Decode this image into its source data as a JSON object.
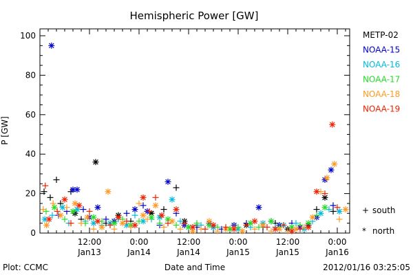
{
  "chart_data": {
    "type": "scatter",
    "title": "Hemispheric Power [GW]",
    "ylabel": "P [GW]",
    "xlabel": "Date and Time",
    "ylim": [
      0,
      105
    ],
    "xlim": [
      0,
      72
    ],
    "yticks": [
      0,
      20,
      40,
      60,
      80,
      100
    ],
    "xticks": [
      {
        "x": 12,
        "top": "12:00",
        "bottom": "Jan13"
      },
      {
        "x": 24,
        "top": "0:00",
        "bottom": "Jan14"
      },
      {
        "x": 36,
        "top": "12:00",
        "bottom": "Jan14"
      },
      {
        "x": 48,
        "top": "0:00",
        "bottom": "Jan15"
      },
      {
        "x": 60,
        "top": "12:00",
        "bottom": "Jan15"
      },
      {
        "x": 72,
        "top": "0:00",
        "bottom": "Jan16"
      }
    ],
    "legend_position": "right",
    "markers": {
      "south": "+",
      "north": "*"
    },
    "marker_legend": [
      {
        "symbol": "+",
        "label": "south"
      },
      {
        "symbol": "*",
        "label": "north"
      }
    ],
    "series": [
      {
        "name": "METP-02",
        "color": "#000000",
        "points": [
          [
            1.0,
            21,
            "s"
          ],
          [
            2.5,
            18,
            "s"
          ],
          [
            4.0,
            27,
            "s"
          ],
          [
            5.0,
            15,
            "s"
          ],
          [
            7.5,
            21,
            "s"
          ],
          [
            8.5,
            10,
            "n"
          ],
          [
            10,
            7,
            "s"
          ],
          [
            13.5,
            36,
            "n"
          ],
          [
            16,
            5,
            "s"
          ],
          [
            19,
            9,
            "n"
          ],
          [
            22,
            6,
            "s"
          ],
          [
            27,
            10,
            "n"
          ],
          [
            30,
            12,
            "s"
          ],
          [
            33,
            23,
            "s"
          ],
          [
            35,
            6,
            "n"
          ],
          [
            38,
            4,
            "s"
          ],
          [
            42,
            3,
            "n"
          ],
          [
            46,
            2,
            "s"
          ],
          [
            50,
            4,
            "n"
          ],
          [
            54,
            3,
            "s"
          ],
          [
            57,
            5,
            "s"
          ],
          [
            60,
            2,
            "n"
          ],
          [
            63,
            3,
            "s"
          ],
          [
            65,
            4,
            "n"
          ],
          [
            67,
            12,
            "s"
          ],
          [
            69,
            18,
            "n"
          ],
          [
            71,
            11,
            "s"
          ]
        ]
      },
      {
        "name": "NOAA-15",
        "color": "#0000cc",
        "points": [
          [
            2.8,
            95,
            "n"
          ],
          [
            4.5,
            9,
            "s"
          ],
          [
            6.5,
            11,
            "s"
          ],
          [
            8.0,
            22,
            "n"
          ],
          [
            9.0,
            22,
            "n"
          ],
          [
            10.5,
            12,
            "s"
          ],
          [
            12,
            8,
            "n"
          ],
          [
            14,
            13,
            "n"
          ],
          [
            16,
            7,
            "s"
          ],
          [
            18,
            6,
            "n"
          ],
          [
            21,
            10,
            "s"
          ],
          [
            23,
            12,
            "n"
          ],
          [
            25,
            14,
            "s"
          ],
          [
            26,
            11,
            "n"
          ],
          [
            29,
            4,
            "s"
          ],
          [
            31,
            26,
            "n"
          ],
          [
            33,
            10,
            "s"
          ],
          [
            35,
            4,
            "n"
          ],
          [
            38,
            3,
            "s"
          ],
          [
            41,
            5,
            "n"
          ],
          [
            44,
            2,
            "s"
          ],
          [
            47,
            4,
            "n"
          ],
          [
            50,
            5,
            "s"
          ],
          [
            53,
            13,
            "n"
          ],
          [
            56,
            6,
            "s"
          ],
          [
            58,
            4,
            "n"
          ],
          [
            61,
            5,
            "s"
          ],
          [
            63,
            3,
            "n"
          ],
          [
            65,
            4,
            "s"
          ],
          [
            67,
            8,
            "n"
          ],
          [
            69,
            27,
            "n"
          ],
          [
            70.5,
            32,
            "n"
          ],
          [
            71,
            14,
            "s"
          ]
        ]
      },
      {
        "name": "NOAA-16",
        "color": "#00bbdd",
        "points": [
          [
            1.2,
            7,
            "n"
          ],
          [
            3.0,
            9,
            "s"
          ],
          [
            5.5,
            13,
            "n"
          ],
          [
            7.0,
            5,
            "s"
          ],
          [
            9.0,
            12,
            "n"
          ],
          [
            11,
            6,
            "s"
          ],
          [
            13,
            5,
            "n"
          ],
          [
            15,
            4,
            "s"
          ],
          [
            17,
            5,
            "n"
          ],
          [
            19,
            7,
            "s"
          ],
          [
            21,
            4,
            "n"
          ],
          [
            23,
            9,
            "s"
          ],
          [
            25,
            6,
            "n"
          ],
          [
            27,
            7,
            "s"
          ],
          [
            29,
            8,
            "n"
          ],
          [
            32,
            17,
            "n"
          ],
          [
            34,
            6,
            "s"
          ],
          [
            36,
            3,
            "n"
          ],
          [
            39,
            4,
            "s"
          ],
          [
            42,
            3,
            "n"
          ],
          [
            45,
            2,
            "s"
          ],
          [
            48,
            2,
            "n"
          ],
          [
            51,
            3,
            "s"
          ],
          [
            54,
            5,
            "n"
          ],
          [
            57,
            3,
            "s"
          ],
          [
            59,
            4,
            "n"
          ],
          [
            62,
            5,
            "s"
          ],
          [
            64,
            2,
            "n"
          ],
          [
            66,
            6,
            "s"
          ],
          [
            68,
            10,
            "n"
          ],
          [
            70,
            12,
            "s"
          ],
          [
            72.5,
            11,
            "n"
          ]
        ]
      },
      {
        "name": "NOAA-17",
        "color": "#22dd22",
        "points": [
          [
            1.5,
            11,
            "s"
          ],
          [
            3.5,
            13,
            "n"
          ],
          [
            6,
            7,
            "s"
          ],
          [
            8,
            11,
            "n"
          ],
          [
            11,
            5,
            "s"
          ],
          [
            13,
            8,
            "n"
          ],
          [
            15,
            6,
            "s"
          ],
          [
            18,
            5,
            "n"
          ],
          [
            20,
            7,
            "s"
          ],
          [
            22,
            4,
            "n"
          ],
          [
            24,
            6,
            "s"
          ],
          [
            27,
            8,
            "n"
          ],
          [
            29,
            5,
            "s"
          ],
          [
            31,
            7,
            "n"
          ],
          [
            33,
            4,
            "s"
          ],
          [
            36,
            3,
            "n"
          ],
          [
            38,
            5,
            "s"
          ],
          [
            41,
            4,
            "n"
          ],
          [
            43,
            3,
            "s"
          ],
          [
            46,
            2,
            "n"
          ],
          [
            48,
            3,
            "s"
          ],
          [
            51,
            5,
            "n"
          ],
          [
            53,
            3,
            "s"
          ],
          [
            56,
            6,
            "n"
          ],
          [
            58,
            3,
            "s"
          ],
          [
            61,
            3,
            "n"
          ],
          [
            63,
            4,
            "s"
          ],
          [
            65,
            5,
            "n"
          ],
          [
            67,
            9,
            "s"
          ],
          [
            69,
            13,
            "n"
          ]
        ]
      },
      {
        "name": "NOAA-18",
        "color": "#ff9922",
        "points": [
          [
            0.8,
            12,
            "s"
          ],
          [
            1.6,
            4,
            "n"
          ],
          [
            3.2,
            15,
            "s"
          ],
          [
            5.0,
            9,
            "n"
          ],
          [
            6.5,
            13,
            "s"
          ],
          [
            8.5,
            15,
            "n"
          ],
          [
            10,
            5,
            "s"
          ],
          [
            11.5,
            8,
            "n"
          ],
          [
            13,
            2,
            "s"
          ],
          [
            15,
            3,
            "n"
          ],
          [
            16.5,
            21,
            "n"
          ],
          [
            18,
            2,
            "s"
          ],
          [
            20,
            5,
            "n"
          ],
          [
            22,
            3,
            "s"
          ],
          [
            24,
            15,
            "s"
          ],
          [
            25,
            9,
            "n"
          ],
          [
            26,
            7,
            "s"
          ],
          [
            28,
            14,
            "n"
          ],
          [
            30,
            3,
            "s"
          ],
          [
            32,
            6,
            "n"
          ],
          [
            34,
            2,
            "s"
          ],
          [
            37,
            1,
            "n"
          ],
          [
            39,
            2,
            "s"
          ],
          [
            41,
            6,
            "n"
          ],
          [
            43,
            1,
            "s"
          ],
          [
            45,
            2,
            "n"
          ],
          [
            47,
            3,
            "s"
          ],
          [
            49,
            1,
            "n"
          ],
          [
            52,
            2,
            "s"
          ],
          [
            54,
            4,
            "n"
          ],
          [
            56,
            1,
            "s"
          ],
          [
            58,
            2,
            "n"
          ],
          [
            60,
            1,
            "s"
          ],
          [
            62,
            2,
            "n"
          ],
          [
            64,
            3,
            "s"
          ],
          [
            66,
            8,
            "n"
          ],
          [
            68,
            21,
            "s"
          ],
          [
            69.5,
            28,
            "n"
          ],
          [
            71.3,
            35,
            "n"
          ],
          [
            72.5,
            7,
            "s"
          ],
          [
            74,
            12,
            "n"
          ]
        ]
      },
      {
        "name": "NOAA-19",
        "color": "#ee2200",
        "points": [
          [
            1.3,
            24,
            "s"
          ],
          [
            2.2,
            7,
            "n"
          ],
          [
            4.2,
            11,
            "s"
          ],
          [
            6.0,
            17,
            "n"
          ],
          [
            7.5,
            5,
            "s"
          ],
          [
            9.5,
            14,
            "n"
          ],
          [
            12,
            11,
            "s"
          ],
          [
            14,
            6,
            "n"
          ],
          [
            17,
            4,
            "s"
          ],
          [
            19,
            8,
            "n"
          ],
          [
            21,
            6,
            "s"
          ],
          [
            23,
            4,
            "n"
          ],
          [
            25,
            18,
            "n"
          ],
          [
            26.5,
            11,
            "s"
          ],
          [
            28,
            18,
            "s"
          ],
          [
            29.5,
            9,
            "n"
          ],
          [
            31,
            5,
            "s"
          ],
          [
            33,
            12,
            "n"
          ],
          [
            35,
            5,
            "s"
          ],
          [
            37,
            3,
            "n"
          ],
          [
            40,
            2,
            "s"
          ],
          [
            42,
            4,
            "n"
          ],
          [
            45,
            3,
            "s"
          ],
          [
            47,
            2,
            "n"
          ],
          [
            50,
            4,
            "s"
          ],
          [
            52,
            6,
            "n"
          ],
          [
            55,
            3,
            "s"
          ],
          [
            57,
            2,
            "n"
          ],
          [
            59,
            4,
            "s"
          ],
          [
            61,
            1,
            "n"
          ],
          [
            63,
            2,
            "s"
          ],
          [
            65,
            3,
            "n"
          ],
          [
            67,
            21,
            "n"
          ],
          [
            69,
            20,
            "s"
          ],
          [
            70.8,
            55,
            "n"
          ],
          [
            72,
            13,
            "s"
          ]
        ]
      }
    ]
  },
  "footer": {
    "left": "Plot: CCMC",
    "right": "2012/01/16 03:25:05"
  }
}
